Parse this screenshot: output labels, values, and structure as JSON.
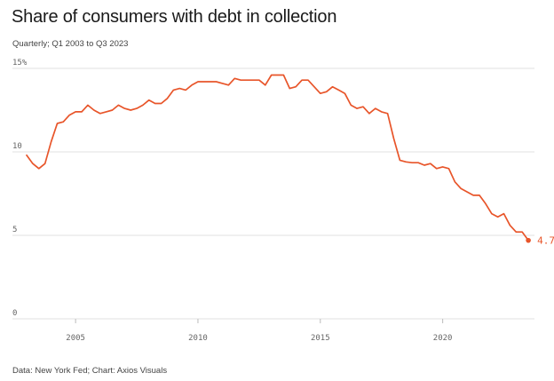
{
  "header": {
    "title": "Share of consumers with debt in collection",
    "subtitle": "Quarterly; Q1 2003 to Q3 2023"
  },
  "footer": {
    "source": "Data: New York Fed; Chart: Axios Visuals"
  },
  "chart_data": {
    "type": "line",
    "title": "Share of consumers with debt in collection",
    "subtitle": "Quarterly; Q1 2003 to Q3 2023",
    "xlabel": "",
    "ylabel": "",
    "xlim": [
      2003,
      2023.75
    ],
    "ylim": [
      0,
      15
    ],
    "x_ticks": [
      {
        "value": 2005,
        "label": "2005"
      },
      {
        "value": 2010,
        "label": "2010"
      },
      {
        "value": 2015,
        "label": "2015"
      },
      {
        "value": 2020,
        "label": "2020"
      }
    ],
    "y_ticks": [
      {
        "value": 0,
        "label": "0"
      },
      {
        "value": 5,
        "label": "5"
      },
      {
        "value": 10,
        "label": "10"
      },
      {
        "value": 15,
        "label": "15%"
      }
    ],
    "grid": true,
    "line_color": "#e8552a",
    "end_label": "4.7%",
    "series": [
      {
        "x": [
          2003.0,
          2003.25,
          2003.5,
          2003.75,
          2004.0,
          2004.25,
          2004.5,
          2004.75,
          2005.0,
          2005.25,
          2005.5,
          2005.75,
          2006.0,
          2006.25,
          2006.5,
          2006.75,
          2007.0,
          2007.25,
          2007.5,
          2007.75,
          2008.0,
          2008.25,
          2008.5,
          2008.75,
          2009.0,
          2009.25,
          2009.5,
          2009.75,
          2010.0,
          2010.25,
          2010.5,
          2010.75,
          2011.0,
          2011.25,
          2011.5,
          2011.75,
          2012.0,
          2012.25,
          2012.5,
          2012.75,
          2013.0,
          2013.25,
          2013.5,
          2013.75,
          2014.0,
          2014.25,
          2014.5,
          2014.75,
          2015.0,
          2015.25,
          2015.5,
          2015.75,
          2016.0,
          2016.25,
          2016.5,
          2016.75,
          2017.0,
          2017.25,
          2017.5,
          2017.75,
          2018.0,
          2018.25,
          2018.5,
          2018.75,
          2019.0,
          2019.25,
          2019.5,
          2019.75,
          2020.0,
          2020.25,
          2020.5,
          2020.75,
          2021.0,
          2021.25,
          2021.5,
          2021.75,
          2022.0,
          2022.25,
          2022.5,
          2022.75,
          2023.0,
          2023.25,
          2023.5
        ],
        "y": [
          9.8,
          9.3,
          9.0,
          9.3,
          10.6,
          11.7,
          11.8,
          12.2,
          12.4,
          12.4,
          12.8,
          12.5,
          12.3,
          12.4,
          12.5,
          12.8,
          12.6,
          12.5,
          12.6,
          12.8,
          13.1,
          12.9,
          12.9,
          13.2,
          13.7,
          13.8,
          13.7,
          14.0,
          14.2,
          14.2,
          14.2,
          14.2,
          14.1,
          14.0,
          14.4,
          14.3,
          14.3,
          14.3,
          14.3,
          14.0,
          14.6,
          14.6,
          14.6,
          13.8,
          13.9,
          14.3,
          14.3,
          13.9,
          13.5,
          13.6,
          13.9,
          13.7,
          13.5,
          12.8,
          12.6,
          12.7,
          12.3,
          12.6,
          12.4,
          12.3,
          10.8,
          9.5,
          9.4,
          9.35,
          9.35,
          9.2,
          9.3,
          9.0,
          9.1,
          9.0,
          8.2,
          7.8,
          7.6,
          7.4,
          7.4,
          6.9,
          6.3,
          6.1,
          6.3,
          5.6,
          5.2,
          5.2,
          4.7
        ]
      }
    ]
  }
}
